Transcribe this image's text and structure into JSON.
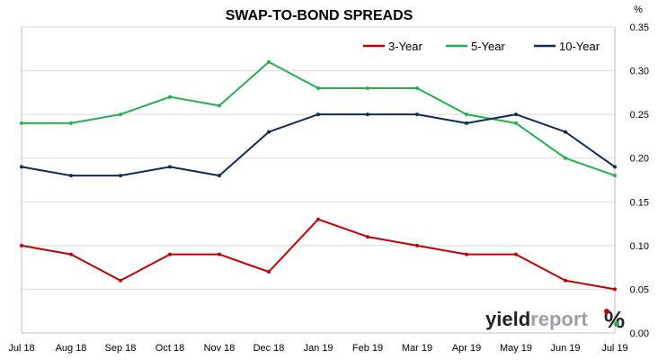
{
  "chart_data": {
    "type": "line",
    "title": "SWAP-TO-BOND SPREADS",
    "unit": "%",
    "ylim": [
      0.0,
      0.35
    ],
    "yticks": [
      "0.00",
      "0.05",
      "0.10",
      "0.15",
      "0.20",
      "0.25",
      "0.30",
      "0.35"
    ],
    "grid": "horizontal",
    "legend_position": "top-right",
    "x": [
      "Jul 18",
      "Aug 18",
      "Sep 18",
      "Oct 18",
      "Nov 18",
      "Dec 18",
      "Jan 19",
      "Feb 19",
      "Mar 19",
      "Apr 19",
      "May 19",
      "Jun 19",
      "Jul 19"
    ],
    "series": [
      {
        "name": "3-Year",
        "color": "#c00000",
        "values": [
          0.1,
          0.09,
          0.06,
          0.09,
          0.09,
          0.07,
          0.13,
          0.11,
          0.1,
          0.09,
          0.09,
          0.06,
          0.05
        ]
      },
      {
        "name": "5-Year",
        "color": "#23b14d",
        "values": [
          0.24,
          0.24,
          0.25,
          0.27,
          0.26,
          0.31,
          0.28,
          0.28,
          0.28,
          0.25,
          0.24,
          0.2,
          0.18
        ]
      },
      {
        "name": "10-Year",
        "color": "#0f2a5c",
        "values": [
          0.19,
          0.18,
          0.18,
          0.19,
          0.18,
          0.23,
          0.25,
          0.25,
          0.25,
          0.24,
          0.25,
          0.23,
          0.19
        ]
      }
    ]
  },
  "brand": {
    "word_light": "yield",
    "word_dark": "report",
    "mark": "%"
  }
}
